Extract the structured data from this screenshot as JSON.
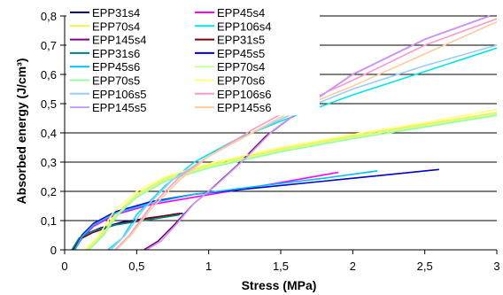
{
  "chart_data": {
    "type": "line",
    "title": "",
    "xlabel": "Stress (MPa)",
    "ylabel": "Absorbed energy (J/cm³)",
    "xlim": [
      0,
      3
    ],
    "ylim": [
      0,
      0.8
    ],
    "x_ticks": [
      0,
      0.5,
      1,
      1.5,
      2,
      2.5,
      3
    ],
    "x_tick_labels": [
      "0",
      "0,5",
      "1",
      "1,5",
      "2",
      "2,5",
      "3"
    ],
    "y_ticks": [
      0,
      0.1,
      0.2,
      0.3,
      0.4,
      0.5,
      0.6,
      0.7,
      0.8
    ],
    "y_tick_labels": [
      "0",
      "0,1",
      "0,2",
      "0,3",
      "0,4",
      "0,5",
      "0,6",
      "0,7",
      "0,8"
    ],
    "grid": "horizontal",
    "legend_position": "top-left",
    "series": [
      {
        "name": "EPP31s4",
        "color": "#00007f",
        "points": [
          [
            0.06,
            0
          ],
          [
            0.1,
            0.03
          ],
          [
            0.15,
            0.055
          ],
          [
            0.25,
            0.075
          ],
          [
            0.4,
            0.095
          ],
          [
            0.6,
            0.11
          ],
          [
            0.82,
            0.125
          ]
        ]
      },
      {
        "name": "EPP45s4",
        "color": "#ff00ff",
        "points": [
          [
            0.07,
            0
          ],
          [
            0.12,
            0.04
          ],
          [
            0.2,
            0.08
          ],
          [
            0.35,
            0.12
          ],
          [
            0.6,
            0.155
          ],
          [
            0.9,
            0.18
          ],
          [
            1.2,
            0.205
          ],
          [
            1.5,
            0.23
          ],
          [
            1.9,
            0.265
          ]
        ]
      },
      {
        "name": "EPP70s4",
        "color": "#f2f24a",
        "points": [
          [
            0.15,
            0
          ],
          [
            0.25,
            0.05
          ],
          [
            0.35,
            0.12
          ],
          [
            0.5,
            0.19
          ],
          [
            0.7,
            0.245
          ],
          [
            1.0,
            0.29
          ],
          [
            1.5,
            0.345
          ],
          [
            2.0,
            0.39
          ],
          [
            2.5,
            0.43
          ],
          [
            3.0,
            0.47
          ]
        ]
      },
      {
        "name": "EPP106s4",
        "color": "#00e5e5",
        "points": [
          [
            0.3,
            0
          ],
          [
            0.4,
            0.04
          ],
          [
            0.5,
            0.12
          ],
          [
            0.7,
            0.22
          ],
          [
            0.9,
            0.3
          ],
          [
            1.2,
            0.38
          ],
          [
            1.5,
            0.44
          ],
          [
            2.0,
            0.53
          ],
          [
            2.5,
            0.61
          ],
          [
            3.0,
            0.69
          ]
        ]
      },
      {
        "name": "EPP145s4",
        "color": "#7f007f",
        "points": [
          [
            0.55,
            0
          ],
          [
            0.65,
            0.03
          ],
          [
            0.75,
            0.08
          ],
          [
            0.9,
            0.16
          ],
          [
            1.0,
            0.2
          ],
          [
            1.2,
            0.29
          ],
          [
            1.4,
            0.39
          ],
          [
            1.7,
            0.5
          ],
          [
            2.0,
            0.6
          ],
          [
            2.5,
            0.72
          ],
          [
            2.95,
            0.8
          ]
        ]
      },
      {
        "name": "EPP31s5",
        "color": "#800000",
        "points": [
          [
            0.06,
            0
          ],
          [
            0.1,
            0.035
          ],
          [
            0.2,
            0.06
          ],
          [
            0.35,
            0.085
          ],
          [
            0.55,
            0.105
          ],
          [
            0.8,
            0.125
          ]
        ]
      },
      {
        "name": "EPP31s6",
        "color": "#008080",
        "points": [
          [
            0.05,
            0
          ],
          [
            0.1,
            0.04
          ],
          [
            0.2,
            0.065
          ],
          [
            0.35,
            0.085
          ],
          [
            0.55,
            0.1
          ],
          [
            0.8,
            0.12
          ]
        ]
      },
      {
        "name": "EPP45s5",
        "color": "#0000cc",
        "points": [
          [
            0.07,
            0
          ],
          [
            0.12,
            0.05
          ],
          [
            0.2,
            0.09
          ],
          [
            0.35,
            0.13
          ],
          [
            0.6,
            0.165
          ],
          [
            0.9,
            0.19
          ],
          [
            1.3,
            0.21
          ],
          [
            1.8,
            0.235
          ],
          [
            2.2,
            0.255
          ],
          [
            2.6,
            0.275
          ]
        ]
      },
      {
        "name": "EPP45s6",
        "color": "#00bfff",
        "points": [
          [
            0.07,
            0
          ],
          [
            0.12,
            0.045
          ],
          [
            0.2,
            0.085
          ],
          [
            0.35,
            0.125
          ],
          [
            0.6,
            0.16
          ],
          [
            0.9,
            0.19
          ],
          [
            1.3,
            0.215
          ],
          [
            1.8,
            0.245
          ],
          [
            2.17,
            0.27
          ]
        ]
      },
      {
        "name": "EPP70s4",
        "color": "#ccff99",
        "points": [
          [
            0.16,
            0
          ],
          [
            0.26,
            0.05
          ],
          [
            0.36,
            0.12
          ],
          [
            0.5,
            0.185
          ],
          [
            0.7,
            0.24
          ],
          [
            1.0,
            0.285
          ],
          [
            1.5,
            0.34
          ],
          [
            2.0,
            0.385
          ],
          [
            2.5,
            0.425
          ],
          [
            3.0,
            0.465
          ]
        ]
      },
      {
        "name": "EPP70s5",
        "color": "#99ff99",
        "points": [
          [
            0.17,
            0
          ],
          [
            0.27,
            0.05
          ],
          [
            0.37,
            0.12
          ],
          [
            0.5,
            0.18
          ],
          [
            0.7,
            0.235
          ],
          [
            1.0,
            0.28
          ],
          [
            1.5,
            0.335
          ],
          [
            2.0,
            0.38
          ],
          [
            2.5,
            0.42
          ],
          [
            3.0,
            0.46
          ]
        ]
      },
      {
        "name": "EPP70s6",
        "color": "#ffff80",
        "points": [
          [
            0.14,
            0
          ],
          [
            0.24,
            0.05
          ],
          [
            0.34,
            0.13
          ],
          [
            0.5,
            0.2
          ],
          [
            0.7,
            0.25
          ],
          [
            1.0,
            0.295
          ],
          [
            1.5,
            0.35
          ],
          [
            2.0,
            0.395
          ],
          [
            2.5,
            0.435
          ],
          [
            3.0,
            0.48
          ]
        ]
      },
      {
        "name": "EPP106s5",
        "color": "#99ccff",
        "points": [
          [
            0.32,
            0
          ],
          [
            0.42,
            0.05
          ],
          [
            0.55,
            0.14
          ],
          [
            0.75,
            0.24
          ],
          [
            1.0,
            0.32
          ],
          [
            1.3,
            0.4
          ],
          [
            1.6,
            0.47
          ],
          [
            2.0,
            0.55
          ],
          [
            2.5,
            0.63
          ],
          [
            3.0,
            0.7
          ]
        ]
      },
      {
        "name": "EPP106s6",
        "color": "#ff99cc",
        "points": [
          [
            0.35,
            0
          ],
          [
            0.45,
            0.05
          ],
          [
            0.6,
            0.15
          ],
          [
            0.8,
            0.25
          ],
          [
            1.0,
            0.32
          ],
          [
            1.3,
            0.41
          ],
          [
            1.6,
            0.49
          ],
          [
            2.0,
            0.58
          ],
          [
            2.5,
            0.7
          ],
          [
            3.0,
            0.79
          ]
        ]
      },
      {
        "name": "EPP145s5",
        "color": "#cc99ff",
        "points": [
          [
            0.57,
            0
          ],
          [
            0.67,
            0.03
          ],
          [
            0.78,
            0.09
          ],
          [
            0.9,
            0.16
          ],
          [
            1.05,
            0.22
          ],
          [
            1.25,
            0.31
          ],
          [
            1.45,
            0.41
          ],
          [
            1.7,
            0.5
          ],
          [
            2.0,
            0.6
          ],
          [
            2.5,
            0.72
          ],
          [
            2.95,
            0.8
          ]
        ]
      },
      {
        "name": "EPP145s6",
        "color": "#ffcc99",
        "points": [
          [
            0.36,
            0
          ],
          [
            0.46,
            0.05
          ],
          [
            0.6,
            0.14
          ],
          [
            0.8,
            0.24
          ],
          [
            1.0,
            0.32
          ],
          [
            1.3,
            0.4
          ],
          [
            1.6,
            0.48
          ],
          [
            2.0,
            0.56
          ],
          [
            2.5,
            0.67
          ],
          [
            3.0,
            0.78
          ]
        ]
      }
    ]
  }
}
